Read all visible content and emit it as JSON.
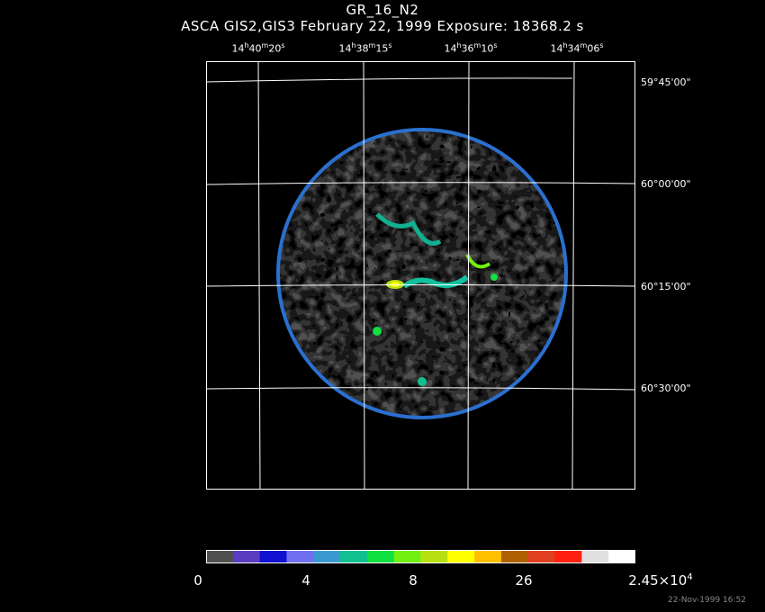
{
  "title": "GR_16_N2",
  "subtitle": "ASCA GIS2,GIS3 February 22, 1999 Exposure: 18368.2 s",
  "ra_labels": [
    {
      "h": "14",
      "m": "40",
      "s": "20"
    },
    {
      "h": "14",
      "m": "38",
      "s": "15"
    },
    {
      "h": "14",
      "m": "36",
      "s": "10"
    },
    {
      "h": "14",
      "m": "34",
      "s": "06"
    }
  ],
  "ra_units": {
    "h": "h",
    "m": "m",
    "s": "s"
  },
  "dec_labels": [
    "59°45'00\"",
    "60°00'00\"",
    "60°15'00\"",
    "60°30'00\""
  ],
  "colorbar": {
    "colors": [
      "#505050",
      "#5a3cc0",
      "#1010d0",
      "#7070f0",
      "#3a9ad0",
      "#10c090",
      "#10e040",
      "#70f010",
      "#b8e010",
      "#ffff00",
      "#ffc000",
      "#b06000",
      "#e04020",
      "#ff2010",
      "#e0e0e0",
      "#ffffff"
    ],
    "tick_labels": [
      "0",
      "4",
      "8",
      "26"
    ],
    "max_label": {
      "mantissa": "2.45×10",
      "exponent": "4"
    }
  },
  "timestamp": "22-Nov-1999 16:52"
}
